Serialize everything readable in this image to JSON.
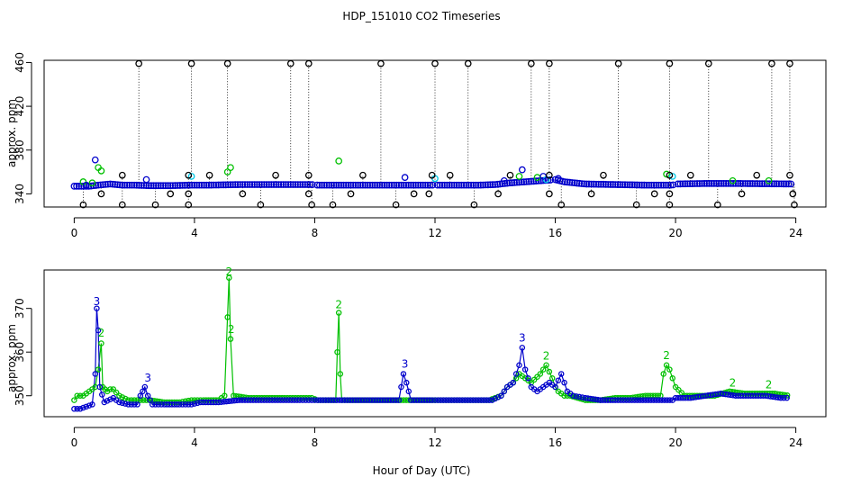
{
  "figure_title": "HDP_151010  CO2 Timeseries",
  "x_axis_label": "Hour of Day (UTC)",
  "chart_data": [
    {
      "type": "scatter",
      "panel": "top",
      "title": "HDP_151010  CO2 Timeseries",
      "xlabel": "Hour of Day (UTC)",
      "ylabel": "approx. ppm",
      "xlim": [
        -1,
        25
      ],
      "ylim": [
        328,
        462
      ],
      "xticks": [
        0,
        4,
        8,
        12,
        16,
        20,
        24
      ],
      "yticks": [
        340,
        380,
        420,
        460
      ],
      "ytick_labels": [
        "340",
        "380",
        "420",
        "460"
      ],
      "baseline": [
        [
          0.0,
          347
        ],
        [
          0.5,
          347
        ],
        [
          0.8,
          348
        ],
        [
          1.2,
          349
        ],
        [
          1.6,
          348
        ],
        [
          2.0,
          348
        ],
        [
          2.5,
          347.5
        ],
        [
          3.2,
          347.5
        ],
        [
          3.9,
          348
        ],
        [
          4.5,
          348
        ],
        [
          5.5,
          348.5
        ],
        [
          7.0,
          348.5
        ],
        [
          7.9,
          348.5
        ],
        [
          8.1,
          348
        ],
        [
          10.0,
          348
        ],
        [
          12.1,
          348
        ],
        [
          13.5,
          348
        ],
        [
          14.0,
          348.5
        ],
        [
          14.5,
          350
        ],
        [
          15.0,
          351
        ],
        [
          15.5,
          352
        ],
        [
          16.0,
          353
        ],
        [
          16.3,
          351
        ],
        [
          17.0,
          349
        ],
        [
          18.0,
          348.5
        ],
        [
          19.0,
          348
        ],
        [
          19.9,
          348
        ],
        [
          20.0,
          349
        ],
        [
          21.0,
          349.5
        ],
        [
          22.0,
          349.5
        ],
        [
          23.9,
          349
        ]
      ],
      "gaps": [
        [
          7.95,
          8.05
        ],
        [
          11.95,
          12.05
        ],
        [
          15.9,
          16.0
        ],
        [
          19.95,
          20.0
        ]
      ],
      "black_high": [
        2.15,
        3.9,
        5.1,
        7.2,
        7.8,
        10.2,
        12.0,
        13.1,
        15.2,
        15.8,
        18.1,
        19.8,
        21.1,
        23.2,
        23.8
      ],
      "black_mid": [
        1.6,
        3.8,
        4.5,
        6.7,
        7.8,
        9.6,
        11.9,
        12.5,
        14.5,
        15.8,
        17.6,
        19.8,
        20.5,
        22.7,
        23.8
      ],
      "black_low": [
        [
          0.3,
          330
        ],
        [
          0.9,
          340
        ],
        [
          1.6,
          330
        ],
        [
          2.7,
          330
        ],
        [
          3.2,
          340
        ],
        [
          3.8,
          340
        ],
        [
          3.8,
          330
        ],
        [
          5.6,
          340
        ],
        [
          6.2,
          330
        ],
        [
          7.8,
          340
        ],
        [
          7.9,
          330
        ],
        [
          8.6,
          330
        ],
        [
          9.2,
          340
        ],
        [
          10.7,
          330
        ],
        [
          11.3,
          340
        ],
        [
          11.8,
          340
        ],
        [
          13.3,
          330
        ],
        [
          14.1,
          340
        ],
        [
          15.8,
          340
        ],
        [
          16.2,
          330
        ],
        [
          17.2,
          340
        ],
        [
          18.7,
          330
        ],
        [
          19.3,
          340
        ],
        [
          19.8,
          340
        ],
        [
          19.8,
          330
        ],
        [
          21.4,
          330
        ],
        [
          22.2,
          340
        ],
        [
          23.9,
          340
        ],
        [
          23.95,
          330
        ]
      ],
      "cyan": [
        [
          3.9,
          356
        ],
        [
          12.0,
          354
        ],
        [
          19.9,
          356
        ],
        [
          15.7,
          353
        ]
      ],
      "green": [
        [
          0.9,
          361
        ],
        [
          0.8,
          364
        ],
        [
          5.1,
          360
        ],
        [
          5.2,
          364
        ],
        [
          8.8,
          370
        ],
        [
          19.7,
          358
        ],
        [
          14.8,
          356
        ],
        [
          15.4,
          355
        ],
        [
          21.9,
          352
        ],
        [
          23.1,
          352
        ],
        [
          0.3,
          351
        ],
        [
          0.6,
          350
        ]
      ],
      "blue": [
        [
          0.7,
          371
        ],
        [
          2.4,
          353
        ],
        [
          11.0,
          355
        ],
        [
          14.9,
          362
        ],
        [
          14.3,
          352
        ],
        [
          15.6,
          356
        ],
        [
          16.1,
          354
        ],
        [
          0.4,
          348
        ]
      ]
    },
    {
      "type": "line",
      "panel": "bottom",
      "xlabel": "Hour of Day (UTC)",
      "ylabel": "approx. ppm",
      "xlim": [
        -1,
        25
      ],
      "ylim": [
        345.2,
        378.8
      ],
      "xticks": [
        0,
        4,
        8,
        12,
        16,
        20,
        24
      ],
      "yticks": [
        350,
        360,
        370
      ],
      "ytick_labels": [
        "350",
        "360",
        "370"
      ],
      "series": [
        {
          "name": "2",
          "color": "#00c000",
          "points": [
            [
              0.0,
              349
            ],
            [
              0.1,
              350
            ],
            [
              0.3,
              350
            ],
            [
              0.5,
              351
            ],
            [
              0.7,
              352
            ],
            [
              0.8,
              356
            ],
            [
              0.9,
              362
            ],
            [
              0.95,
              352
            ],
            [
              1.1,
              351
            ],
            [
              1.2,
              351.5
            ],
            [
              1.3,
              351.5
            ],
            [
              1.5,
              350
            ],
            [
              1.8,
              349
            ],
            [
              2.2,
              349
            ],
            [
              2.5,
              349
            ],
            [
              3.0,
              348.5
            ],
            [
              3.5,
              348.5
            ],
            [
              3.9,
              349
            ],
            [
              4.3,
              349
            ],
            [
              4.8,
              349
            ],
            [
              5.0,
              350
            ],
            [
              5.1,
              368
            ],
            [
              5.15,
              377
            ],
            [
              5.2,
              363
            ],
            [
              5.3,
              350
            ],
            [
              5.8,
              349.5
            ],
            [
              6.5,
              349.5
            ],
            [
              7.0,
              349.5
            ],
            [
              7.9,
              349.5
            ],
            [
              8.1,
              349
            ],
            [
              8.7,
              349
            ],
            [
              8.75,
              360
            ],
            [
              8.8,
              369
            ],
            [
              8.85,
              355
            ],
            [
              8.9,
              349
            ],
            [
              9.5,
              349
            ],
            [
              10.5,
              349
            ],
            [
              11.5,
              349
            ],
            [
              12.1,
              349
            ],
            [
              13.0,
              349
            ],
            [
              13.8,
              349
            ],
            [
              14.2,
              350
            ],
            [
              14.4,
              352
            ],
            [
              14.6,
              353
            ],
            [
              14.8,
              355
            ],
            [
              15.0,
              354
            ],
            [
              15.2,
              353
            ],
            [
              15.5,
              355
            ],
            [
              15.7,
              357
            ],
            [
              15.9,
              354
            ],
            [
              16.0,
              352
            ],
            [
              16.1,
              351
            ],
            [
              16.3,
              350
            ],
            [
              16.5,
              350
            ],
            [
              17.0,
              349
            ],
            [
              17.5,
              349
            ],
            [
              18.0,
              349.5
            ],
            [
              18.5,
              349.5
            ],
            [
              19.0,
              350
            ],
            [
              19.5,
              350
            ],
            [
              19.6,
              355
            ],
            [
              19.7,
              357
            ],
            [
              19.8,
              356
            ],
            [
              20.0,
              352
            ],
            [
              20.3,
              350
            ],
            [
              20.8,
              350
            ],
            [
              21.3,
              350
            ],
            [
              21.8,
              351
            ],
            [
              22.3,
              350.5
            ],
            [
              22.8,
              350.5
            ],
            [
              23.3,
              350.5
            ],
            [
              23.8,
              350
            ]
          ]
        },
        {
          "name": "3",
          "color": "#0000cc",
          "points": [
            [
              0.0,
              347
            ],
            [
              0.2,
              347
            ],
            [
              0.4,
              347.5
            ],
            [
              0.6,
              348
            ],
            [
              0.7,
              355
            ],
            [
              0.75,
              370
            ],
            [
              0.8,
              365
            ],
            [
              0.85,
              352
            ],
            [
              1.0,
              348.5
            ],
            [
              1.3,
              349.5
            ],
            [
              1.5,
              348.5
            ],
            [
              1.8,
              348
            ],
            [
              2.1,
              348
            ],
            [
              2.2,
              350
            ],
            [
              2.35,
              352
            ],
            [
              2.45,
              350
            ],
            [
              2.6,
              348
            ],
            [
              3.0,
              348
            ],
            [
              3.5,
              348
            ],
            [
              3.9,
              348
            ],
            [
              4.2,
              348.5
            ],
            [
              4.8,
              348.5
            ],
            [
              5.5,
              349
            ],
            [
              6.5,
              349
            ],
            [
              7.5,
              349
            ],
            [
              7.9,
              349
            ],
            [
              8.1,
              349
            ],
            [
              9.0,
              349
            ],
            [
              10.0,
              349
            ],
            [
              10.8,
              349
            ],
            [
              10.95,
              355
            ],
            [
              11.05,
              353
            ],
            [
              11.2,
              349
            ],
            [
              11.9,
              349
            ],
            [
              12.1,
              349
            ],
            [
              13.0,
              349
            ],
            [
              13.9,
              349
            ],
            [
              14.2,
              350
            ],
            [
              14.4,
              352
            ],
            [
              14.6,
              353
            ],
            [
              14.8,
              357
            ],
            [
              14.9,
              361
            ],
            [
              15.0,
              356
            ],
            [
              15.2,
              352
            ],
            [
              15.4,
              351
            ],
            [
              15.6,
              352
            ],
            [
              15.8,
              353
            ],
            [
              16.0,
              352
            ],
            [
              16.2,
              355
            ],
            [
              16.4,
              351
            ],
            [
              16.6,
              350
            ],
            [
              17.0,
              349.5
            ],
            [
              17.5,
              349
            ],
            [
              18.0,
              349
            ],
            [
              19.0,
              349
            ],
            [
              19.9,
              349
            ],
            [
              20.0,
              349.5
            ],
            [
              20.5,
              349.5
            ],
            [
              21.0,
              350
            ],
            [
              21.5,
              350.5
            ],
            [
              22.0,
              350
            ],
            [
              22.5,
              350
            ],
            [
              23.0,
              350
            ],
            [
              23.5,
              349.5
            ],
            [
              23.8,
              349.5
            ]
          ]
        }
      ],
      "labels": [
        {
          "text": "3",
          "x": 0.75,
          "y": 370.8,
          "color": "#0000cc"
        },
        {
          "text": "2",
          "x": 0.9,
          "y": 363.5,
          "color": "#00c000"
        },
        {
          "text": "3",
          "x": 2.45,
          "y": 353.2,
          "color": "#0000cc"
        },
        {
          "text": "2",
          "x": 5.15,
          "y": 377.6,
          "color": "#00c000"
        },
        {
          "text": "2",
          "x": 5.22,
          "y": 364.4,
          "color": "#00c000"
        },
        {
          "text": "2",
          "x": 8.8,
          "y": 370.0,
          "color": "#00c000"
        },
        {
          "text": "3",
          "x": 11.0,
          "y": 356.4,
          "color": "#0000cc"
        },
        {
          "text": "3",
          "x": 14.9,
          "y": 362.4,
          "color": "#0000cc"
        },
        {
          "text": "2",
          "x": 15.7,
          "y": 358.3,
          "color": "#00c000"
        },
        {
          "text": "2",
          "x": 19.7,
          "y": 358.4,
          "color": "#00c000"
        },
        {
          "text": "2",
          "x": 21.9,
          "y": 352.1,
          "color": "#00c000"
        },
        {
          "text": "2",
          "x": 23.1,
          "y": 351.7,
          "color": "#00c000"
        }
      ]
    }
  ],
  "colors": {
    "black": "#000000",
    "blue": "#0000cc",
    "green": "#00c000",
    "cyan": "#00c8e6"
  }
}
